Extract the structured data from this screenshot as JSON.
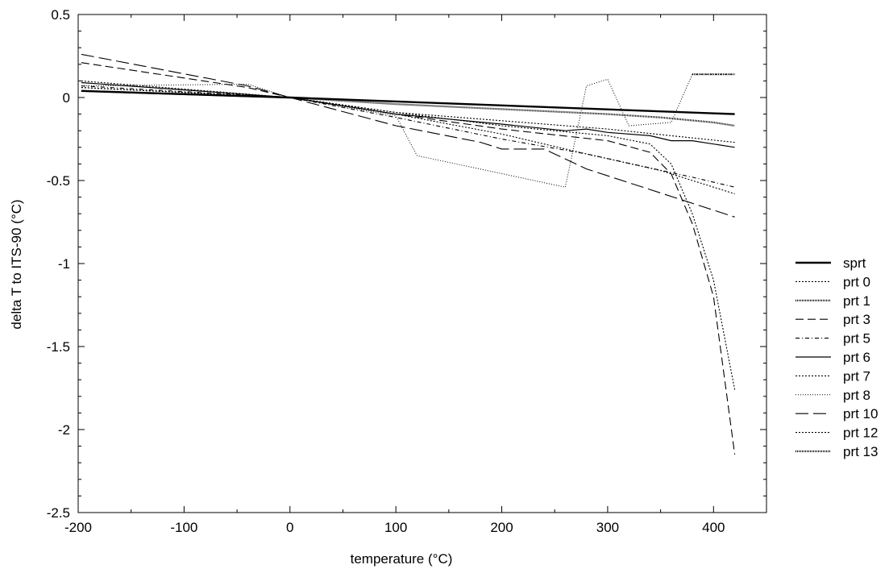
{
  "chart_data": {
    "type": "line",
    "title": "",
    "xlabel": "temperature (°C)",
    "ylabel": "delta T to ITS-90 (°C)",
    "xlim": [
      -200,
      450
    ],
    "ylim": [
      -2.5,
      0.5
    ],
    "xticks": [
      -200,
      -100,
      0,
      100,
      200,
      300,
      400
    ],
    "yticks": [
      0.5,
      0,
      -0.5,
      -1,
      -1.5,
      -2,
      -2.5
    ],
    "xtick_labels": [
      "-200",
      "-100",
      "0",
      "100",
      "200",
      "300",
      "400"
    ],
    "ytick_labels": [
      "0.5",
      "0",
      "-0.5",
      "-1",
      "-1.5",
      "-2",
      "-2.5"
    ],
    "grid": false,
    "legend_position": "right",
    "series": [
      {
        "name": "sprt",
        "style": "sprt",
        "x": [
          -197,
          0,
          420
        ],
        "y": [
          0.04,
          0,
          -0.1
        ]
      },
      {
        "name": "prt 0",
        "style": "dot",
        "x": [
          -197,
          -100,
          0,
          100,
          200,
          300,
          340,
          360,
          380,
          400,
          420
        ],
        "y": [
          0.06,
          0.03,
          0,
          -0.09,
          -0.17,
          -0.23,
          -0.28,
          -0.4,
          -0.7,
          -1.1,
          -1.76
        ]
      },
      {
        "name": "prt 1",
        "style": "densedot",
        "x": [
          -197,
          -100,
          0,
          100,
          200,
          300,
          350,
          400,
          420
        ],
        "y": [
          0.04,
          0.02,
          0,
          -0.04,
          -0.07,
          -0.1,
          -0.12,
          -0.15,
          -0.17
        ]
      },
      {
        "name": "prt 3",
        "style": "dash",
        "x": [
          -197,
          -40,
          0,
          100,
          200,
          300,
          340,
          360,
          380,
          400,
          420
        ],
        "y": [
          0.21,
          0.06,
          0,
          -0.1,
          -0.19,
          -0.26,
          -0.33,
          -0.46,
          -0.76,
          -1.2,
          -2.15
        ]
      },
      {
        "name": "prt 5",
        "style": "dashdot",
        "x": [
          -197,
          0,
          100,
          200,
          280,
          380,
          420
        ],
        "y": [
          0.07,
          0,
          -0.12,
          -0.25,
          -0.34,
          -0.48,
          -0.54
        ]
      },
      {
        "name": "prt 6",
        "style": "solid",
        "x": [
          -197,
          0,
          100,
          200,
          260,
          280,
          300,
          340,
          360,
          380,
          420
        ],
        "y": [
          0.09,
          0,
          -0.1,
          -0.16,
          -0.2,
          -0.19,
          -0.21,
          -0.23,
          -0.26,
          -0.26,
          -0.3
        ]
      },
      {
        "name": "prt 7",
        "style": "dot",
        "x": [
          -197,
          0,
          100,
          200,
          300,
          360,
          420
        ],
        "y": [
          0.06,
          0,
          -0.09,
          -0.14,
          -0.19,
          -0.23,
          -0.27
        ]
      },
      {
        "name": "prt 8",
        "style": "sparsedot",
        "x": [
          -197,
          -40,
          0,
          100,
          120,
          260,
          280,
          300,
          320,
          360,
          380,
          420
        ],
        "y": [
          0.07,
          0.08,
          0,
          -0.11,
          -0.35,
          -0.54,
          0.07,
          0.11,
          -0.17,
          -0.15,
          0.14,
          0.14
        ]
      },
      {
        "name": "prt 10",
        "style": "longdash",
        "x": [
          -197,
          -40,
          0,
          100,
          180,
          200,
          240,
          260,
          280,
          420
        ],
        "y": [
          0.26,
          0.07,
          0,
          -0.17,
          -0.27,
          -0.31,
          -0.31,
          -0.37,
          -0.43,
          -0.72
        ]
      },
      {
        "name": "prt 12",
        "style": "dot",
        "x": [
          -197,
          0,
          100,
          200,
          280,
          350,
          420
        ],
        "y": [
          0.1,
          0,
          -0.1,
          -0.22,
          -0.34,
          -0.44,
          -0.58
        ]
      },
      {
        "name": "prt 13",
        "style": "densedot",
        "x": [
          380,
          420
        ],
        "y": [
          0.14,
          0.14
        ]
      }
    ]
  }
}
